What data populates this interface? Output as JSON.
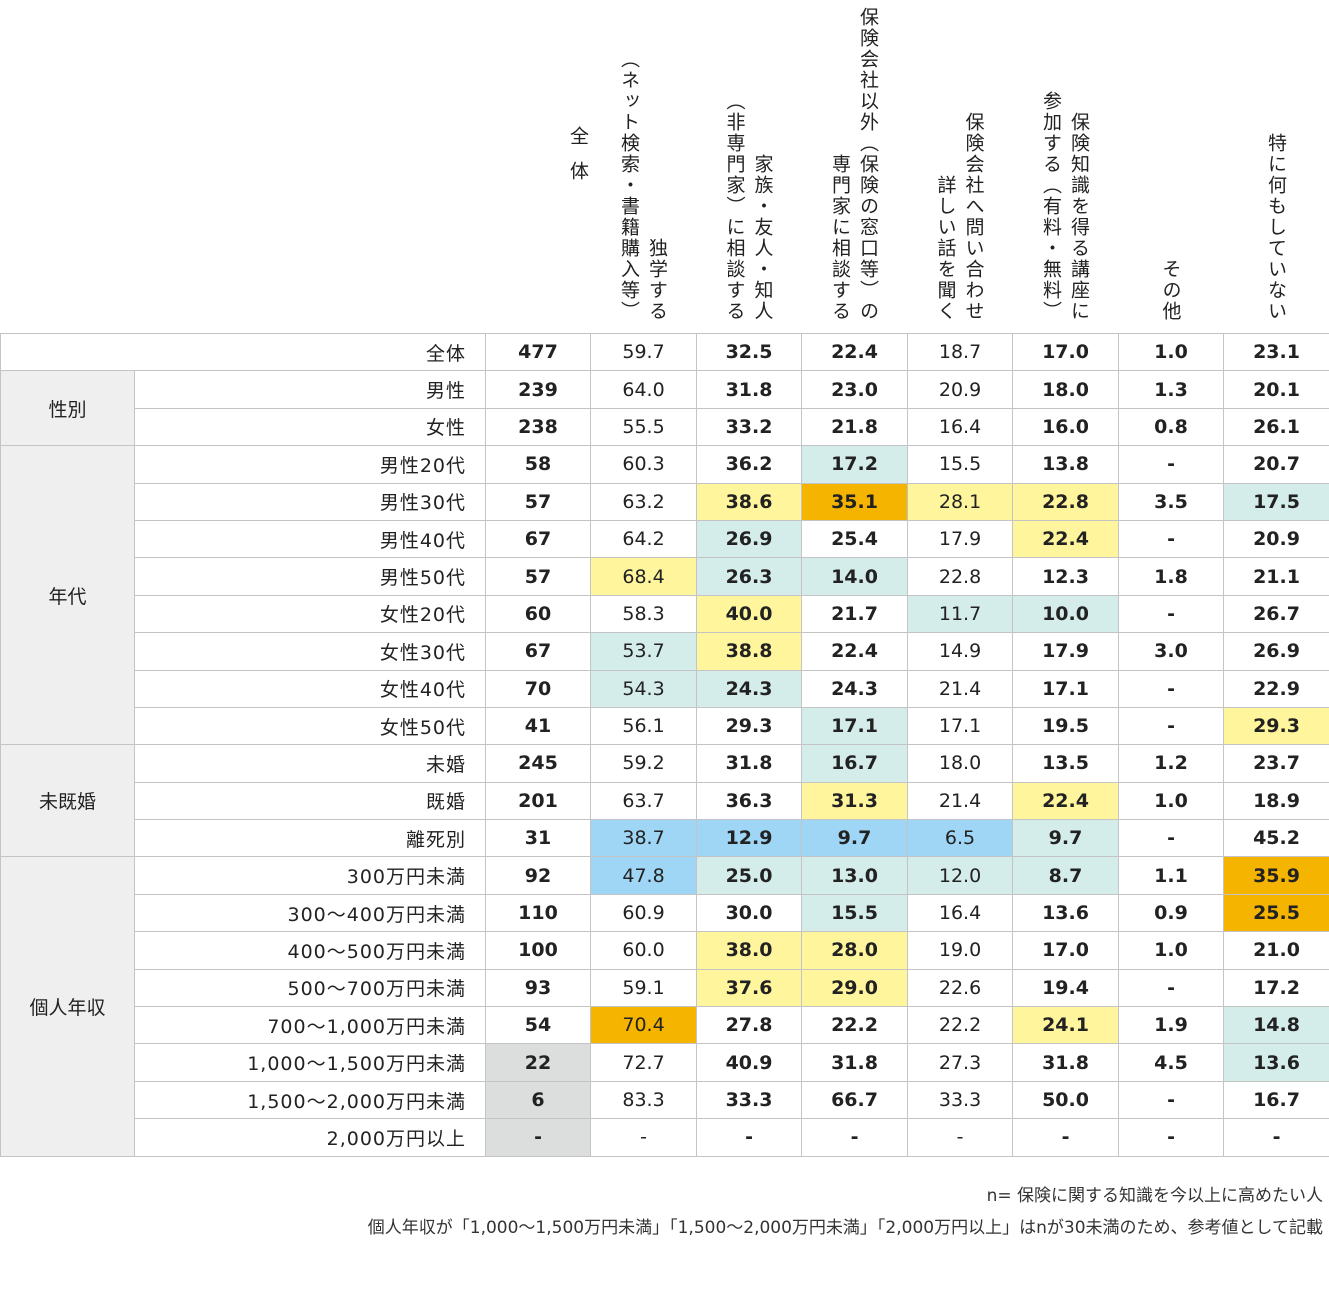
{
  "header": {
    "columns": [
      {
        "key": "n",
        "lines": [
          "全",
          "体"
        ]
      },
      {
        "key": "self_study",
        "lines": [
          "独学する",
          "（ネット検索・書籍購入等）"
        ]
      },
      {
        "key": "family",
        "lines": [
          "家族・友人・知人",
          "（非専門家）に相談する"
        ]
      },
      {
        "key": "expert",
        "lines": [
          "保険会社以外（保険の窓口等）の",
          "専門家に相談する"
        ]
      },
      {
        "key": "inquiry",
        "lines": [
          "保険会社へ問い合わせ",
          "詳しい話を聞く"
        ]
      },
      {
        "key": "seminar",
        "lines": [
          "保険知識を得る講座に",
          "参加する（有料・無料）"
        ]
      },
      {
        "key": "other",
        "lines": [
          "その他"
        ]
      },
      {
        "key": "nothing",
        "lines": [
          "特に何もしていない"
        ]
      }
    ]
  },
  "colors": {
    "high1": "#fff59d",
    "high2": "#f5b400",
    "low1": "#d4ecea",
    "low2": "#9fd6f5",
    "reference": "#dcdddd",
    "group_bg": "#eeefee"
  },
  "groups": [
    {
      "label": "",
      "rows": [
        {
          "label": "全体",
          "n": "477",
          "v": [
            "59.7",
            "32.5",
            "22.4",
            "18.7",
            "17.0",
            "1.0",
            "23.1"
          ],
          "c": [
            "",
            "",
            "",
            "",
            "",
            "",
            ""
          ],
          "nc": ""
        }
      ]
    },
    {
      "label": "性別",
      "rows": [
        {
          "label": "男性",
          "n": "239",
          "v": [
            "64.0",
            "31.8",
            "23.0",
            "20.9",
            "18.0",
            "1.3",
            "20.1"
          ],
          "c": [
            "",
            "",
            "",
            "",
            "",
            "",
            ""
          ],
          "nc": ""
        },
        {
          "label": "女性",
          "n": "238",
          "v": [
            "55.5",
            "33.2",
            "21.8",
            "16.4",
            "16.0",
            "0.8",
            "26.1"
          ],
          "c": [
            "",
            "",
            "",
            "",
            "",
            "",
            ""
          ],
          "nc": ""
        }
      ]
    },
    {
      "label": "年代",
      "rows": [
        {
          "label": "男性20代",
          "n": "58",
          "v": [
            "60.3",
            "36.2",
            "17.2",
            "15.5",
            "13.8",
            "-",
            "20.7"
          ],
          "c": [
            "",
            "",
            "teal",
            "",
            "",
            "",
            ""
          ],
          "nc": ""
        },
        {
          "label": "男性30代",
          "n": "57",
          "v": [
            "63.2",
            "38.6",
            "35.1",
            "28.1",
            "22.8",
            "3.5",
            "17.5"
          ],
          "c": [
            "",
            "yellow",
            "orange",
            "yellow",
            "yellow",
            "",
            "teal"
          ],
          "nc": ""
        },
        {
          "label": "男性40代",
          "n": "67",
          "v": [
            "64.2",
            "26.9",
            "25.4",
            "17.9",
            "22.4",
            "-",
            "20.9"
          ],
          "c": [
            "",
            "teal",
            "",
            "",
            "yellow",
            "",
            ""
          ],
          "nc": ""
        },
        {
          "label": "男性50代",
          "n": "57",
          "v": [
            "68.4",
            "26.3",
            "14.0",
            "22.8",
            "12.3",
            "1.8",
            "21.1"
          ],
          "c": [
            "yellow",
            "teal",
            "teal",
            "",
            "",
            "",
            ""
          ],
          "nc": ""
        },
        {
          "label": "女性20代",
          "n": "60",
          "v": [
            "58.3",
            "40.0",
            "21.7",
            "11.7",
            "10.0",
            "-",
            "26.7"
          ],
          "c": [
            "",
            "yellow",
            "",
            "teal",
            "teal",
            "",
            ""
          ],
          "nc": ""
        },
        {
          "label": "女性30代",
          "n": "67",
          "v": [
            "53.7",
            "38.8",
            "22.4",
            "14.9",
            "17.9",
            "3.0",
            "26.9"
          ],
          "c": [
            "teal",
            "yellow",
            "",
            "",
            "",
            "",
            ""
          ],
          "nc": ""
        },
        {
          "label": "女性40代",
          "n": "70",
          "v": [
            "54.3",
            "24.3",
            "24.3",
            "21.4",
            "17.1",
            "-",
            "22.9"
          ],
          "c": [
            "teal",
            "teal",
            "",
            "",
            "",
            "",
            ""
          ],
          "nc": ""
        },
        {
          "label": "女性50代",
          "n": "41",
          "v": [
            "56.1",
            "29.3",
            "17.1",
            "17.1",
            "19.5",
            "-",
            "29.3"
          ],
          "c": [
            "",
            "",
            "teal",
            "",
            "",
            "",
            "yellow"
          ],
          "nc": ""
        }
      ]
    },
    {
      "label": "未既婚",
      "rows": [
        {
          "label": "未婚",
          "n": "245",
          "v": [
            "59.2",
            "31.8",
            "16.7",
            "18.0",
            "13.5",
            "1.2",
            "23.7"
          ],
          "c": [
            "",
            "",
            "teal",
            "",
            "",
            "",
            ""
          ],
          "nc": ""
        },
        {
          "label": "既婚",
          "n": "201",
          "v": [
            "63.7",
            "36.3",
            "31.3",
            "21.4",
            "22.4",
            "1.0",
            "18.9"
          ],
          "c": [
            "",
            "",
            "yellow",
            "",
            "yellow",
            "",
            ""
          ],
          "nc": ""
        },
        {
          "label": "離死別",
          "n": "31",
          "v": [
            "38.7",
            "12.9",
            "9.7",
            "6.5",
            "9.7",
            "-",
            "45.2"
          ],
          "c": [
            "blue",
            "blue",
            "blue",
            "blue",
            "teal",
            "",
            ""
          ],
          "nc": ""
        }
      ]
    },
    {
      "label": "個人年収",
      "rows": [
        {
          "label": "300万円未満",
          "n": "92",
          "v": [
            "47.8",
            "25.0",
            "13.0",
            "12.0",
            "8.7",
            "1.1",
            "35.9"
          ],
          "c": [
            "blue",
            "teal",
            "teal",
            "teal",
            "teal",
            "",
            "orange"
          ],
          "nc": ""
        },
        {
          "label": "300〜400万円未満",
          "n": "110",
          "v": [
            "60.9",
            "30.0",
            "15.5",
            "16.4",
            "13.6",
            "0.9",
            "25.5"
          ],
          "c": [
            "",
            "",
            "teal",
            "",
            "",
            "",
            "orange"
          ],
          "nc": ""
        },
        {
          "label": "400〜500万円未満",
          "n": "100",
          "v": [
            "60.0",
            "38.0",
            "28.0",
            "19.0",
            "17.0",
            "1.0",
            "21.0"
          ],
          "c": [
            "",
            "yellow",
            "yellow",
            "",
            "",
            "",
            ""
          ],
          "nc": ""
        },
        {
          "label": "500〜700万円未満",
          "n": "93",
          "v": [
            "59.1",
            "37.6",
            "29.0",
            "22.6",
            "19.4",
            "-",
            "17.2"
          ],
          "c": [
            "",
            "yellow",
            "yellow",
            "",
            "",
            "",
            ""
          ],
          "nc": ""
        },
        {
          "label": "700〜1,000万円未満",
          "n": "54",
          "v": [
            "70.4",
            "27.8",
            "22.2",
            "22.2",
            "24.1",
            "1.9",
            "14.8"
          ],
          "c": [
            "orange",
            "",
            "",
            "",
            "yellow",
            "",
            "teal"
          ],
          "nc": ""
        },
        {
          "label": "1,000〜1,500万円未満",
          "n": "22",
          "v": [
            "72.7",
            "40.9",
            "31.8",
            "27.3",
            "31.8",
            "4.5",
            "13.6"
          ],
          "c": [
            "",
            "",
            "",
            "",
            "",
            "",
            "teal"
          ],
          "nc": "gray"
        },
        {
          "label": "1,500〜2,000万円未満",
          "n": "6",
          "v": [
            "83.3",
            "33.3",
            "66.7",
            "33.3",
            "50.0",
            "-",
            "16.7"
          ],
          "c": [
            "",
            "",
            "",
            "",
            "",
            "",
            ""
          ],
          "nc": "gray"
        },
        {
          "label": "2,000万円以上",
          "n": "-",
          "v": [
            "-",
            "-",
            "-",
            "-",
            "-",
            "-",
            "-"
          ],
          "c": [
            "",
            "",
            "",
            "",
            "",
            "",
            ""
          ],
          "nc": "gray"
        }
      ]
    }
  ],
  "notes": [
    "n= 保険に関する知識を今以上に高めたい人",
    "個人年収が「1,000〜1,500万円未満」「1,500〜2,000万円未満」「2,000万円以上」はnが30未満のため、参考値として記載"
  ]
}
